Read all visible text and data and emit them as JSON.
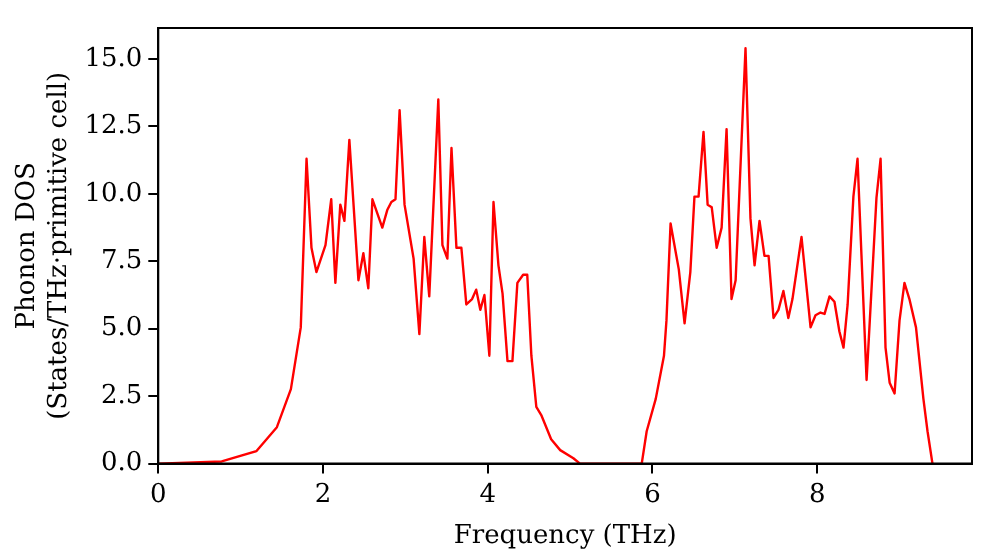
{
  "chart_data": {
    "type": "line",
    "xlabel": "Frequency (THz)",
    "ylabel": "Phonon DOS\n(States/THz·primitive cell)",
    "xlim": [
      0,
      9.88
    ],
    "ylim": [
      0,
      16.15
    ],
    "xticks": [
      0,
      2,
      4,
      6,
      8
    ],
    "yticks": [
      {
        "value": 0,
        "label": "0.0"
      },
      {
        "value": 2.5,
        "label": "2.5"
      },
      {
        "value": 5,
        "label": "5.0"
      },
      {
        "value": 7.5,
        "label": "7.5"
      },
      {
        "value": 10,
        "label": "10.0"
      },
      {
        "value": 12.5,
        "label": "12.5"
      },
      {
        "value": 15,
        "label": "15.0"
      }
    ],
    "grid": false,
    "legend": false,
    "marker": "none",
    "line_style": "solid",
    "series": [
      {
        "color": "#ff0000",
        "x": [
          0,
          0.77,
          1.19,
          1.44,
          1.61,
          1.73,
          1.8,
          1.86,
          1.92,
          2.03,
          2.1,
          2.15,
          2.21,
          2.26,
          2.32,
          2.43,
          2.49,
          2.55,
          2.6,
          2.72,
          2.78,
          2.83,
          2.88,
          2.93,
          2.99,
          3.1,
          3.17,
          3.23,
          3.29,
          3.4,
          3.45,
          3.51,
          3.56,
          3.62,
          3.68,
          3.74,
          3.81,
          3.86,
          3.91,
          3.96,
          4.02,
          4.07,
          4.13,
          4.18,
          4.24,
          4.3,
          4.36,
          4.43,
          4.48,
          4.53,
          4.59,
          4.65,
          4.77,
          4.88,
          5.04,
          5.12,
          5.87,
          5.93,
          6.04,
          6.14,
          6.17,
          6.22,
          6.32,
          6.39,
          6.46,
          6.51,
          6.56,
          6.62,
          6.67,
          6.72,
          6.78,
          6.84,
          6.9,
          6.96,
          7.01,
          7.13,
          7.19,
          7.24,
          7.3,
          7.36,
          7.41,
          7.47,
          7.53,
          7.59,
          7.65,
          7.7,
          7.81,
          7.92,
          7.98,
          8.04,
          8.09,
          8.15,
          8.21,
          8.27,
          8.32,
          8.37,
          8.44,
          8.49,
          8.6,
          8.72,
          8.77,
          8.83,
          8.88,
          8.94,
          9,
          9.06,
          9.12,
          9.2,
          9.29,
          9.34,
          9.4
        ],
        "values": [
          0,
          0.08,
          0.46,
          1.35,
          2.76,
          5.05,
          11.3,
          8,
          7.1,
          8.1,
          9.8,
          6.7,
          9.6,
          9,
          12,
          6.8,
          7.8,
          6.5,
          9.8,
          8.75,
          9.4,
          9.7,
          9.8,
          13.1,
          9.6,
          7.6,
          4.8,
          8.4,
          6.2,
          13.5,
          8.1,
          7.6,
          11.7,
          8,
          8,
          5.9,
          6.1,
          6.45,
          5.7,
          6.25,
          4,
          9.7,
          7.35,
          6.3,
          3.8,
          3.8,
          6.7,
          7,
          7,
          4,
          2.1,
          1.8,
          0.9,
          0.5,
          0.2,
          0,
          0,
          1.2,
          2.4,
          4,
          5.3,
          8.9,
          7.2,
          5.2,
          7.1,
          9.9,
          9.9,
          12.3,
          9.6,
          9.5,
          8,
          8.75,
          12.4,
          6.1,
          6.8,
          15.4,
          9.1,
          7.35,
          9,
          7.7,
          7.7,
          5.4,
          5.7,
          6.4,
          5.4,
          6.1,
          8.4,
          5.05,
          5.5,
          5.6,
          5.55,
          6.2,
          6,
          4.9,
          4.3,
          5.9,
          9.9,
          11.3,
          3.1,
          9.85,
          11.3,
          4.3,
          3,
          2.6,
          5.3,
          6.7,
          6.1,
          5.05,
          2.4,
          1.2,
          0
        ]
      }
    ]
  }
}
